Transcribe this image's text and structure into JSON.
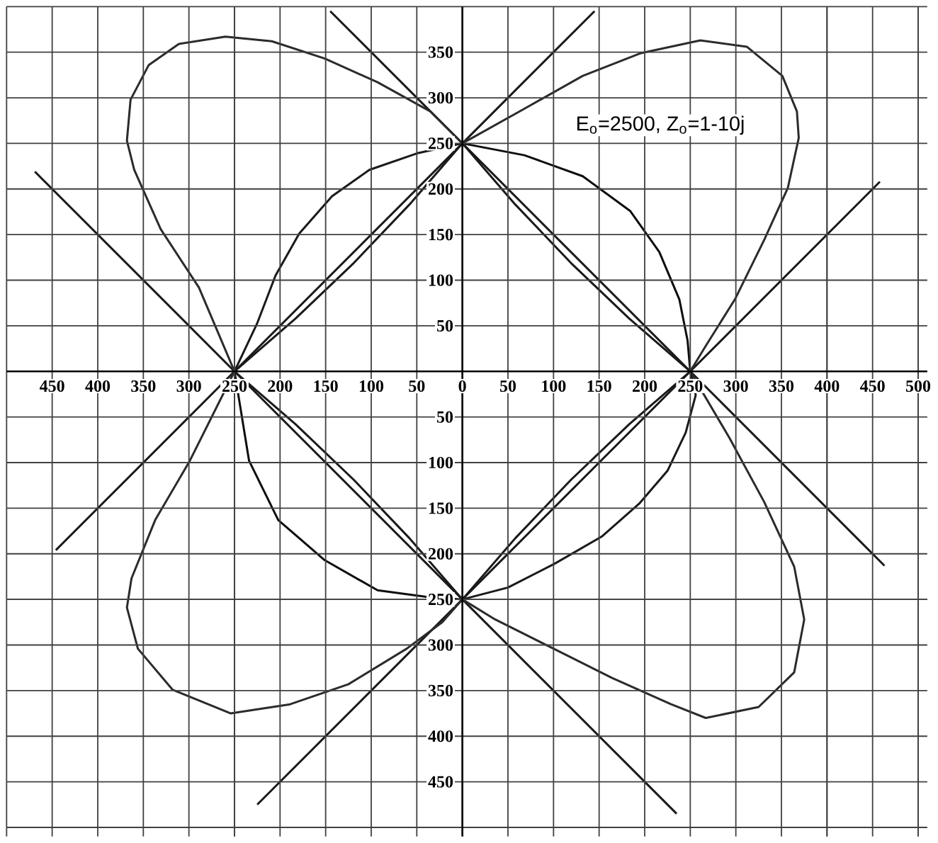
{
  "chart_data": {
    "type": "line",
    "annotations": [
      "E$_{o}$=2500, Z$_{o}$=1-10j"
    ],
    "xlim": [
      -500,
      510
    ],
    "ylim": [
      -510,
      400
    ],
    "xticks": [
      {
        "value": -450,
        "label": "450"
      },
      {
        "value": -400,
        "label": "400"
      },
      {
        "value": -350,
        "label": "350"
      },
      {
        "value": -300,
        "label": "300"
      },
      {
        "value": -250,
        "label": "250"
      },
      {
        "value": -200,
        "label": "200"
      },
      {
        "value": -150,
        "label": "150"
      },
      {
        "value": -100,
        "label": "100"
      },
      {
        "value": -50,
        "label": "50"
      },
      0,
      50,
      100,
      150,
      200,
      250,
      300,
      350,
      400,
      450,
      500
    ],
    "yticks": [
      {
        "value": -450,
        "label": "450"
      },
      {
        "value": -400,
        "label": "400"
      },
      {
        "value": -350,
        "label": "350"
      },
      {
        "value": -300,
        "label": "300"
      },
      {
        "value": -250,
        "label": "250"
      },
      {
        "value": -200,
        "label": "200"
      },
      {
        "value": -150,
        "label": "150"
      },
      {
        "value": -100,
        "label": "100"
      },
      {
        "value": -50,
        "label": "50"
      },
      50,
      100,
      150,
      200,
      250,
      300,
      350
    ],
    "grid": true,
    "series": [
      {
        "color": "#1a1a1a",
        "x": [
          -469,
          -250,
          0,
          235
        ],
        "values": [
          219,
          0,
          -250,
          -485
        ]
      },
      {
        "color": "#1a1a1a",
        "x": [
          -145,
          0,
          250,
          463
        ],
        "values": [
          395,
          250,
          0,
          -213
        ]
      },
      {
        "color": "#1a1a1a",
        "x": [
          -446,
          -250,
          0,
          145
        ],
        "values": [
          -196,
          0,
          250,
          395
        ]
      },
      {
        "color": "#1a1a1a",
        "x": [
          -225,
          0,
          250,
          458
        ],
        "values": [
          -475,
          -250,
          0,
          208
        ]
      },
      {
        "color": "#2b2b2b",
        "x": [
          -250,
          -289,
          -331,
          -360,
          -368,
          -364,
          -344,
          -311,
          -260,
          -209,
          -151,
          -93,
          -35,
          0
        ],
        "values": [
          0,
          92,
          156,
          221,
          253,
          298,
          336,
          359,
          367,
          362,
          343,
          317,
          285,
          250
        ]
      },
      {
        "color": "#2b2b2b",
        "x": [
          0,
          68,
          132,
          196,
          261,
          312,
          351,
          367,
          369,
          357,
          331,
          299,
          267,
          250
        ],
        "values": [
          250,
          288,
          324,
          349,
          363,
          356,
          324,
          285,
          256,
          201,
          144,
          79,
          28,
          0
        ]
      },
      {
        "color": "#2b2b2b",
        "x": [
          -250,
          -299,
          -337,
          -363,
          -368,
          -356,
          -318,
          -254,
          -189,
          -125,
          -61,
          -22,
          0
        ],
        "values": [
          0,
          -98,
          -163,
          -227,
          -259,
          -304,
          -349,
          -375,
          -365,
          -343,
          -304,
          -275,
          -250
        ]
      },
      {
        "color": "#2b2b2b",
        "x": [
          0,
          36,
          100,
          164,
          229,
          267,
          325,
          364,
          375,
          364,
          331,
          293,
          250
        ],
        "values": [
          -250,
          -272,
          -304,
          -336,
          -365,
          -380,
          -368,
          -330,
          -272,
          -214,
          -143,
          -73,
          0
        ]
      },
      {
        "color": "#1a1a1a",
        "x": [
          -250,
          -225,
          -205,
          -179,
          -143,
          -102,
          -50,
          0
        ],
        "values": [
          0,
          53,
          105,
          151,
          192,
          221,
          239,
          250
        ]
      },
      {
        "color": "#0d0d0d",
        "x": [
          0,
          68,
          132,
          184,
          216,
          238,
          247,
          250
        ],
        "values": [
          250,
          237,
          214,
          176,
          131,
          79,
          34,
          0
        ]
      },
      {
        "color": "#1a1a1a",
        "x": [
          250,
          256,
          245,
          225,
          194,
          153,
          101,
          50,
          0
        ],
        "values": [
          0,
          -26,
          -67,
          -109,
          -145,
          -181,
          -211,
          -237,
          -250
        ]
      },
      {
        "color": "#0d0d0d",
        "x": [
          0,
          -41,
          -93,
          -151,
          -202,
          -234,
          -250
        ],
        "values": [
          -250,
          -247,
          -240,
          -207,
          -163,
          -98,
          0
        ]
      },
      {
        "color": "#1a1a1a",
        "x": [
          -250,
          -183,
          -119,
          -58,
          0
        ],
        "values": [
          0,
          58,
          119,
          183,
          250
        ]
      },
      {
        "color": "#1a1a1a",
        "x": [
          0,
          58,
          119,
          183,
          250
        ],
        "values": [
          250,
          183,
          119,
          58,
          0
        ]
      },
      {
        "color": "#1a1a1a",
        "x": [
          250,
          183,
          119,
          58,
          0
        ],
        "values": [
          0,
          -58,
          -119,
          -183,
          -250
        ]
      },
      {
        "color": "#1a1a1a",
        "x": [
          0,
          -58,
          -119,
          -183,
          -250
        ],
        "values": [
          -250,
          -183,
          -119,
          -58,
          0
        ]
      }
    ]
  }
}
